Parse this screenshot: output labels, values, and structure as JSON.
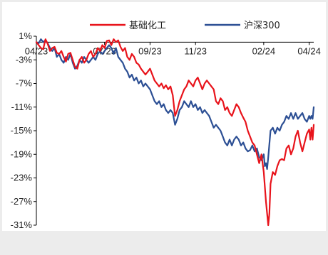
{
  "chart_data": {
    "type": "line",
    "title": "",
    "xlabel": "",
    "ylabel": "",
    "x_tick_labels": [
      "04/23",
      "07/23",
      "09/23",
      "11/23",
      "02/24",
      "04/24"
    ],
    "y_tick_labels": [
      "1%",
      "-3%",
      "-7%",
      "-11%",
      "-15%",
      "-19%",
      "-23%",
      "-27%",
      "-31%"
    ],
    "y_ticks": [
      1,
      -3,
      -7,
      -11,
      -15,
      -19,
      -23,
      -27,
      -31
    ],
    "ylim": [
      -31,
      1
    ],
    "x_unit": "months since 2023-04",
    "xlim": [
      0,
      12.2
    ],
    "grid": false,
    "legend_position": "top",
    "series": [
      {
        "name": "基础化工",
        "color": "#e8131b",
        "points": [
          [
            0,
            0
          ],
          [
            0.1,
            -0.5
          ],
          [
            0.2,
            -1
          ],
          [
            0.3,
            -1.2
          ],
          [
            0.4,
            0.5
          ],
          [
            0.5,
            -0.3
          ],
          [
            0.6,
            -1.5
          ],
          [
            0.7,
            -1
          ],
          [
            0.8,
            -0.8
          ],
          [
            0.9,
            -1.8
          ],
          [
            1.0,
            -2
          ],
          [
            1.1,
            -1.5
          ],
          [
            1.2,
            -2.5
          ],
          [
            1.3,
            -3.3
          ],
          [
            1.4,
            -2
          ],
          [
            1.5,
            -1.8
          ],
          [
            1.6,
            -3
          ],
          [
            1.7,
            -4.2
          ],
          [
            1.8,
            -4.5
          ],
          [
            1.9,
            -3
          ],
          [
            2.0,
            -2.5
          ],
          [
            2.1,
            -3.5
          ],
          [
            2.2,
            -3
          ],
          [
            2.3,
            -2
          ],
          [
            2.4,
            -1.5
          ],
          [
            2.5,
            -2.5
          ],
          [
            2.6,
            -2
          ],
          [
            2.7,
            -1
          ],
          [
            2.8,
            -1.5
          ],
          [
            2.9,
            -0.5
          ],
          [
            3.0,
            -1
          ],
          [
            3.1,
            0.2
          ],
          [
            3.2,
            0.3
          ],
          [
            3.3,
            -0.5
          ],
          [
            3.4,
            0.5
          ],
          [
            3.5,
            0
          ],
          [
            3.6,
            0.3
          ],
          [
            3.7,
            -0.8
          ],
          [
            3.8,
            -1.5
          ],
          [
            3.9,
            -1
          ],
          [
            4.0,
            -2.5
          ],
          [
            4.1,
            -3
          ],
          [
            4.2,
            -2
          ],
          [
            4.3,
            -2.5
          ],
          [
            4.4,
            -3.5
          ],
          [
            4.5,
            -3.8
          ],
          [
            4.6,
            -4.5
          ],
          [
            4.7,
            -5
          ],
          [
            4.8,
            -5.5
          ],
          [
            4.9,
            -5
          ],
          [
            5.0,
            -4.5
          ],
          [
            5.1,
            -5.5
          ],
          [
            5.2,
            -6.5
          ],
          [
            5.3,
            -7
          ],
          [
            5.4,
            -7.5
          ],
          [
            5.5,
            -7
          ],
          [
            5.6,
            -7.8
          ],
          [
            5.7,
            -7.3
          ],
          [
            5.8,
            -8
          ],
          [
            5.9,
            -7.5
          ],
          [
            6.0,
            -9
          ],
          [
            6.1,
            -12.5
          ],
          [
            6.2,
            -11.5
          ],
          [
            6.3,
            -10
          ],
          [
            6.4,
            -9
          ],
          [
            6.5,
            -8
          ],
          [
            6.6,
            -7.5
          ],
          [
            6.7,
            -6.5
          ],
          [
            6.8,
            -7
          ],
          [
            6.9,
            -7.5
          ],
          [
            7.0,
            -6.5
          ],
          [
            7.1,
            -6
          ],
          [
            7.2,
            -7
          ],
          [
            7.3,
            -8
          ],
          [
            7.4,
            -7
          ],
          [
            7.5,
            -6.5
          ],
          [
            7.6,
            -7
          ],
          [
            7.7,
            -7.5
          ],
          [
            7.8,
            -8
          ],
          [
            7.9,
            -10
          ],
          [
            8.0,
            -10.5
          ],
          [
            8.1,
            -9.5
          ],
          [
            8.2,
            -10
          ],
          [
            8.3,
            -11.5
          ],
          [
            8.4,
            -11
          ],
          [
            8.5,
            -12
          ],
          [
            8.6,
            -12.5
          ],
          [
            8.7,
            -11.5
          ],
          [
            8.8,
            -10.5
          ],
          [
            8.9,
            -11
          ],
          [
            9.0,
            -12
          ],
          [
            9.1,
            -12.8
          ],
          [
            9.2,
            -13.5
          ],
          [
            9.3,
            -15
          ],
          [
            9.4,
            -16
          ],
          [
            9.5,
            -17
          ],
          [
            9.6,
            -17.5
          ],
          [
            9.7,
            -19
          ],
          [
            9.8,
            -20.5
          ],
          [
            9.9,
            -19
          ],
          [
            10.0,
            -22
          ],
          [
            10.1,
            -27
          ],
          [
            10.2,
            -31
          ],
          [
            10.25,
            -29
          ],
          [
            10.3,
            -24
          ],
          [
            10.4,
            -22
          ],
          [
            10.5,
            -22.5
          ],
          [
            10.6,
            -21
          ],
          [
            10.7,
            -20
          ],
          [
            10.8,
            -19.8
          ],
          [
            10.9,
            -20
          ],
          [
            11.0,
            -18
          ],
          [
            11.1,
            -17.5
          ],
          [
            11.2,
            -19
          ],
          [
            11.3,
            -18
          ],
          [
            11.4,
            -16
          ],
          [
            11.5,
            -15
          ],
          [
            11.6,
            -17
          ],
          [
            11.7,
            -18.5
          ],
          [
            11.8,
            -17
          ],
          [
            11.9,
            -15.5
          ],
          [
            12.0,
            -14.8
          ],
          [
            12.05,
            -16.5
          ],
          [
            12.1,
            -14.5
          ],
          [
            12.15,
            -16.5
          ],
          [
            12.2,
            -14
          ]
        ]
      },
      {
        "name": "沪深300",
        "color": "#2c4f94",
        "points": [
          [
            0,
            0
          ],
          [
            0.1,
            -0.2
          ],
          [
            0.2,
            0.5
          ],
          [
            0.3,
            0
          ],
          [
            0.4,
            0.3
          ],
          [
            0.5,
            -0.2
          ],
          [
            0.6,
            -1
          ],
          [
            0.7,
            -1.5
          ],
          [
            0.8,
            -1
          ],
          [
            0.9,
            -2.5
          ],
          [
            1.0,
            -2
          ],
          [
            1.1,
            -3
          ],
          [
            1.2,
            -3.5
          ],
          [
            1.3,
            -2.5
          ],
          [
            1.4,
            -3
          ],
          [
            1.5,
            -2
          ],
          [
            1.6,
            -3.5
          ],
          [
            1.7,
            -4.5
          ],
          [
            1.8,
            -4
          ],
          [
            1.9,
            -3
          ],
          [
            2.0,
            -3.5
          ],
          [
            2.1,
            -2.5
          ],
          [
            2.2,
            -3
          ],
          [
            2.3,
            -3.5
          ],
          [
            2.4,
            -3
          ],
          [
            2.5,
            -2.5
          ],
          [
            2.6,
            -3
          ],
          [
            2.7,
            -2
          ],
          [
            2.8,
            -1.5
          ],
          [
            2.9,
            -2
          ],
          [
            3.0,
            -1.5
          ],
          [
            3.1,
            -1
          ],
          [
            3.2,
            -0.5
          ],
          [
            3.3,
            -1
          ],
          [
            3.4,
            -2
          ],
          [
            3.5,
            -1
          ],
          [
            3.6,
            -2.5
          ],
          [
            3.7,
            -3
          ],
          [
            3.8,
            -3.5
          ],
          [
            3.9,
            -4.5
          ],
          [
            4.0,
            -5
          ],
          [
            4.1,
            -6
          ],
          [
            4.2,
            -5.5
          ],
          [
            4.3,
            -6.5
          ],
          [
            4.4,
            -6
          ],
          [
            4.5,
            -7
          ],
          [
            4.6,
            -6.5
          ],
          [
            4.7,
            -7.5
          ],
          [
            4.8,
            -7
          ],
          [
            4.9,
            -7.5
          ],
          [
            5.0,
            -8
          ],
          [
            5.1,
            -9
          ],
          [
            5.2,
            -10
          ],
          [
            5.3,
            -10.5
          ],
          [
            5.4,
            -10
          ],
          [
            5.5,
            -11
          ],
          [
            5.6,
            -10.5
          ],
          [
            5.7,
            -11.5
          ],
          [
            5.8,
            -12
          ],
          [
            5.9,
            -11.5
          ],
          [
            6.0,
            -12
          ],
          [
            6.1,
            -14
          ],
          [
            6.2,
            -13
          ],
          [
            6.3,
            -11.5
          ],
          [
            6.4,
            -11
          ],
          [
            6.5,
            -10
          ],
          [
            6.6,
            -10.5
          ],
          [
            6.7,
            -11
          ],
          [
            6.8,
            -10
          ],
          [
            6.9,
            -11
          ],
          [
            7.0,
            -10.5
          ],
          [
            7.1,
            -11.5
          ],
          [
            7.2,
            -11
          ],
          [
            7.3,
            -12
          ],
          [
            7.4,
            -11.5
          ],
          [
            7.5,
            -12
          ],
          [
            7.6,
            -12.5
          ],
          [
            7.7,
            -13.5
          ],
          [
            7.8,
            -14.5
          ],
          [
            7.9,
            -14
          ],
          [
            8.0,
            -14.5
          ],
          [
            8.1,
            -15
          ],
          [
            8.2,
            -16
          ],
          [
            8.3,
            -17
          ],
          [
            8.4,
            -17.5
          ],
          [
            8.5,
            -16.5
          ],
          [
            8.6,
            -17.5
          ],
          [
            8.7,
            -16.5
          ],
          [
            8.8,
            -16
          ],
          [
            8.9,
            -16.5
          ],
          [
            9.0,
            -17.5
          ],
          [
            9.1,
            -17
          ],
          [
            9.2,
            -18
          ],
          [
            9.3,
            -18.5
          ],
          [
            9.4,
            -18.3
          ],
          [
            9.5,
            -17.5
          ],
          [
            9.6,
            -18.5
          ],
          [
            9.7,
            -18
          ],
          [
            9.8,
            -19.5
          ],
          [
            9.9,
            -20
          ],
          [
            10.0,
            -19
          ],
          [
            10.05,
            -21
          ],
          [
            10.1,
            -20.5
          ],
          [
            10.15,
            -21.5
          ],
          [
            10.2,
            -19.5
          ],
          [
            10.3,
            -15
          ],
          [
            10.4,
            -14.5
          ],
          [
            10.5,
            -15.5
          ],
          [
            10.6,
            -14.5
          ],
          [
            10.7,
            -15
          ],
          [
            10.8,
            -14
          ],
          [
            10.9,
            -13.5
          ],
          [
            11.0,
            -12.5
          ],
          [
            11.1,
            -13
          ],
          [
            11.2,
            -12
          ],
          [
            11.3,
            -13
          ],
          [
            11.4,
            -12
          ],
          [
            11.5,
            -13
          ],
          [
            11.6,
            -12.5
          ],
          [
            11.7,
            -12
          ],
          [
            11.8,
            -13
          ],
          [
            11.9,
            -13.5
          ],
          [
            12.0,
            -12.5
          ],
          [
            12.05,
            -13
          ],
          [
            12.1,
            -12.5
          ],
          [
            12.15,
            -13
          ],
          [
            12.2,
            -11
          ]
        ]
      }
    ]
  }
}
